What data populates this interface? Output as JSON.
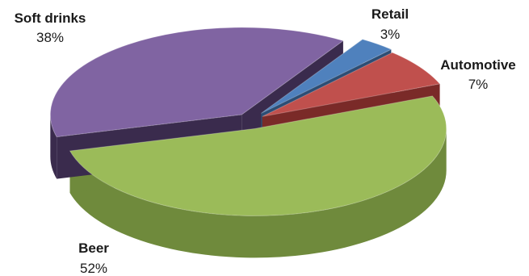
{
  "chart_data": {
    "type": "pie",
    "style": "3d-exploded",
    "legend": "none",
    "slices": [
      {
        "label": "Beer",
        "percent_text": "52%",
        "value": 52,
        "color": "#9bbb59",
        "side_color": "#6f8a3c"
      },
      {
        "label": "Soft drinks",
        "percent_text": "38%",
        "value": 38,
        "color": "#8064a2",
        "side_color": "#3a2b4d"
      },
      {
        "label": "Retail",
        "percent_text": "3%",
        "value": 3,
        "color": "#4f81bd",
        "side_color": "#2c4d74"
      },
      {
        "label": "Automotive",
        "percent_text": "7%",
        "value": 7,
        "color": "#c0504d",
        "side_color": "#7a2a28"
      }
    ]
  }
}
